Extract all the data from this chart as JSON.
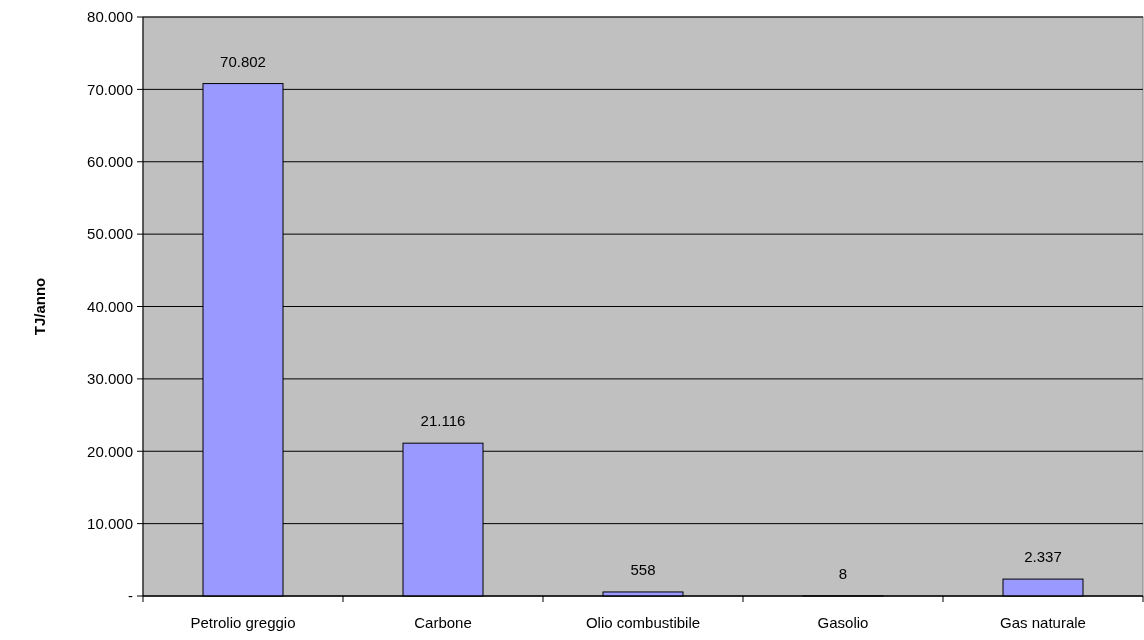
{
  "chart_data": {
    "type": "bar",
    "ylabel": "TJ/anno",
    "categories": [
      "Petrolio greggio",
      "Carbone",
      "Olio combustibile",
      "Gasolio",
      "Gas naturale"
    ],
    "values": [
      70802,
      21116,
      558,
      8,
      2337
    ],
    "value_labels": [
      "70.802",
      "21.116",
      "558",
      "8",
      "2.337"
    ],
    "color": "#9999ff",
    "ylim": [
      0,
      80000
    ],
    "yticks": [
      {
        "value": 0,
        "label": "-"
      },
      {
        "value": 10000,
        "label": "10.000"
      },
      {
        "value": 20000,
        "label": "20.000"
      },
      {
        "value": 30000,
        "label": "30.000"
      },
      {
        "value": 40000,
        "label": "40.000"
      },
      {
        "value": 50000,
        "label": "50.000"
      },
      {
        "value": 60000,
        "label": "60.000"
      },
      {
        "value": 70000,
        "label": "70.000"
      },
      {
        "value": 80000,
        "label": "80.000"
      }
    ],
    "grid": "y"
  }
}
